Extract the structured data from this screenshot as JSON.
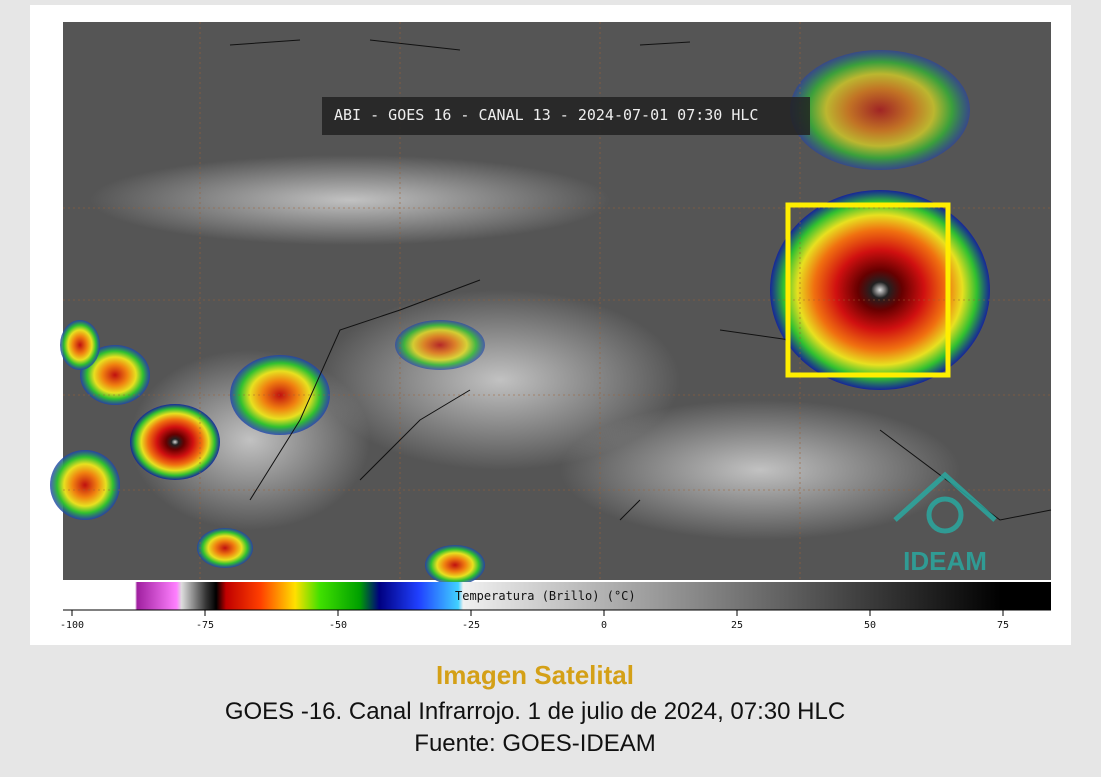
{
  "image": {
    "overlay_title": "ABI - GOES 16 - CANAL 13 - 2024-07-01 07:30 HLC",
    "logo": "IDEAM"
  },
  "colorbar": {
    "label": "Temperatura (Brillo) (°C)",
    "ticks": [
      -100,
      -75,
      -50,
      -25,
      0,
      25,
      50,
      75
    ]
  },
  "caption": {
    "title": "Imagen Satelital",
    "line1": "GOES -16. Canal Infrarrojo. 1 de julio de 2024, 07:30 HLC",
    "line2": "Fuente: GOES-IDEAM"
  }
}
